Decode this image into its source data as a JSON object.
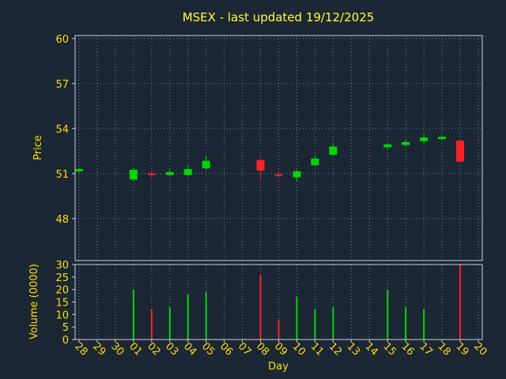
{
  "chart_data": {
    "type": "candlestick",
    "title": "MSEX - last updated 19/12/2025",
    "xlabel": "Day",
    "ylabel_price": "Price",
    "ylabel_volume": "Volume (0000)",
    "x_ticks": [
      "28",
      "29",
      "30",
      "01",
      "02",
      "03",
      "04",
      "05",
      "06",
      "07",
      "08",
      "09",
      "10",
      "11",
      "12",
      "13",
      "14",
      "15",
      "16",
      "17",
      "18",
      "19",
      "20"
    ],
    "price_ticks": [
      48,
      51,
      54,
      57,
      60
    ],
    "price_range": [
      45.2,
      60.2
    ],
    "volume_ticks": [
      0,
      5,
      10,
      15,
      20,
      25,
      30
    ],
    "volume_range": [
      0,
      30
    ],
    "legend": "none",
    "grid": "dotted",
    "candles": [
      {
        "open": 51.15,
        "high": 51.35,
        "low": 51.05,
        "close": 51.3,
        "volume": 0
      },
      null,
      null,
      {
        "open": 50.6,
        "high": 51.4,
        "low": 50.5,
        "close": 51.25,
        "volume": 20
      },
      {
        "open": 51.0,
        "high": 51.15,
        "low": 50.75,
        "close": 50.9,
        "volume": 12
      },
      {
        "open": 50.9,
        "high": 51.3,
        "low": 50.8,
        "close": 51.1,
        "volume": 13
      },
      {
        "open": 50.9,
        "high": 51.55,
        "low": 50.8,
        "close": 51.3,
        "volume": 18
      },
      {
        "open": 51.35,
        "high": 52.2,
        "low": 51.25,
        "close": 51.85,
        "volume": 19
      },
      null,
      null,
      {
        "open": 51.9,
        "high": 52.0,
        "low": 50.6,
        "close": 51.2,
        "volume": 26
      },
      {
        "open": 50.95,
        "high": 51.1,
        "low": 50.7,
        "close": 50.85,
        "volume": 8
      },
      {
        "open": 50.75,
        "high": 51.25,
        "low": 50.45,
        "close": 51.15,
        "volume": 17
      },
      {
        "open": 51.55,
        "high": 52.2,
        "low": 51.5,
        "close": 52.0,
        "volume": 12
      },
      {
        "open": 52.25,
        "high": 53.05,
        "low": 52.2,
        "close": 52.8,
        "volume": 13
      },
      null,
      null,
      {
        "open": 52.75,
        "high": 53.0,
        "low": 52.6,
        "close": 52.95,
        "volume": 20
      },
      {
        "open": 52.9,
        "high": 53.3,
        "low": 52.8,
        "close": 53.1,
        "volume": 13
      },
      {
        "open": 53.15,
        "high": 53.6,
        "low": 53.05,
        "close": 53.4,
        "volume": 12
      },
      {
        "open": 53.3,
        "high": 53.55,
        "low": 53.2,
        "close": 53.45,
        "volume": 0
      },
      {
        "open": 53.2,
        "high": 53.3,
        "low": 51.75,
        "close": 51.8,
        "volume": 30
      },
      null
    ]
  },
  "colors": {
    "background": "#1b2735",
    "frame": "#c9d1d9",
    "grid": "#8fa0b0",
    "text": "#ffdf00",
    "title": "#ffff33",
    "up": "#00d800",
    "down": "#ff2222"
  }
}
